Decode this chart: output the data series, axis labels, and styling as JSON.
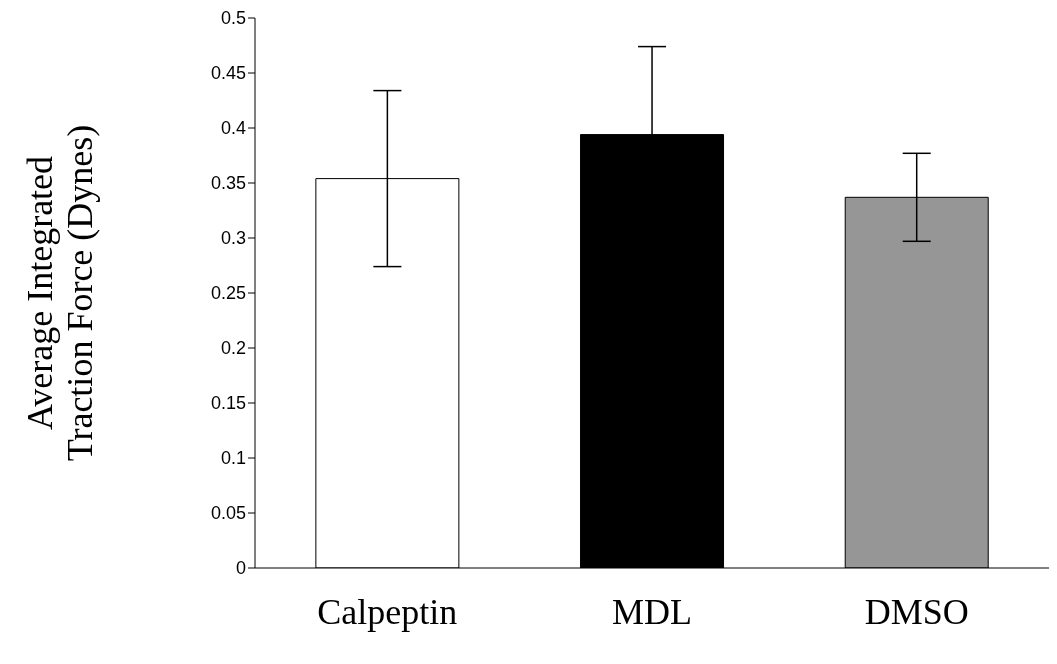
{
  "chart_data": {
    "type": "bar",
    "ylabel": "Average Integrated Traction Force (Dynes)",
    "categories": [
      "Calpeptin",
      "MDL",
      "DMSO"
    ],
    "values": [
      0.354,
      0.394,
      0.337
    ],
    "errors": [
      0.08,
      0.08,
      0.04
    ],
    "colors": [
      "#ffffff",
      "#000000",
      "#969696"
    ],
    "ylim": [
      0,
      0.5
    ],
    "yticks": [
      0,
      0.05,
      0.1,
      0.15,
      0.2,
      0.25,
      0.3,
      0.35,
      0.4,
      0.45,
      0.5
    ],
    "grid": false,
    "legend": false
  }
}
